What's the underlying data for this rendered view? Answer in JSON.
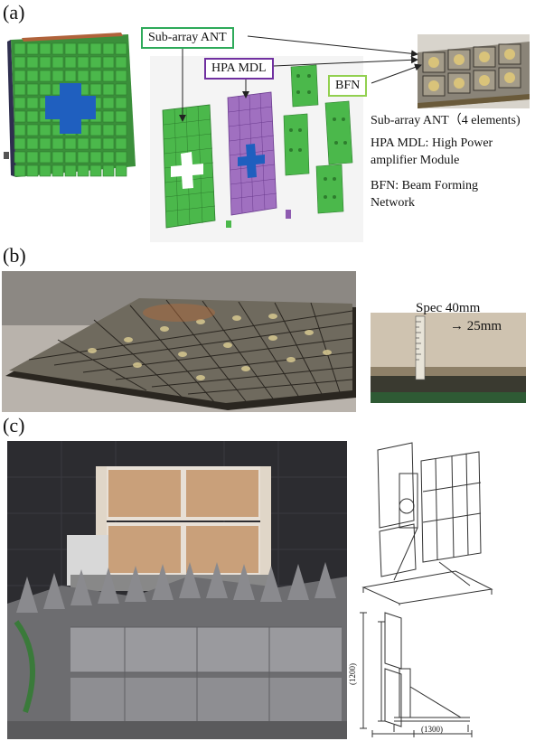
{
  "panel_a": {
    "label": "(a)",
    "callouts": {
      "subarray": "Sub-array ANT",
      "hpa": "HPA MDL",
      "bfn": "BFN"
    },
    "legend": [
      "Sub-array ANT（4 elements)",
      "HPA MDL: High Power",
      "amplifier Module",
      "BFN: Beam Forming",
      "Network"
    ],
    "colors": {
      "subarray_frame": "#2eaa5a",
      "hpa_frame": "#7030a0",
      "bfn_frame": "#92d050",
      "antenna_green": "#4bb84b",
      "hpa_purple": "#a070c0",
      "feed_blue": "#1f5fbf"
    }
  },
  "panel_b": {
    "label": "(b)",
    "spec_line1": "Spec 40mm",
    "spec_line2": "→ 25mm"
  },
  "panel_c": {
    "label": "(c)",
    "drawing_dims": {
      "height": "(1200)",
      "width": "(1300)"
    }
  }
}
